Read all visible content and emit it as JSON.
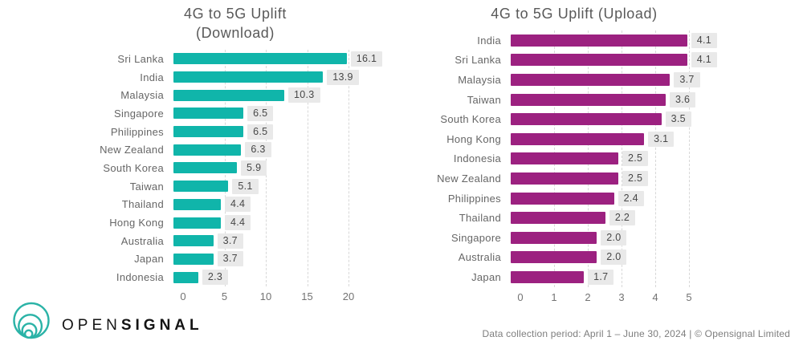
{
  "chart_data": [
    {
      "type": "bar",
      "orientation": "horizontal",
      "title": "4G to 5G Uplift (Download)",
      "title_lines": [
        "4G to 5G Uplift",
        "(Download)"
      ],
      "categories": [
        "Sri Lanka",
        "India",
        "Malaysia",
        "Singapore",
        "Philippines",
        "New Zealand",
        "South Korea",
        "Taiwan",
        "Thailand",
        "Hong Kong",
        "Australia",
        "Japan",
        "Indonesia"
      ],
      "values": [
        16.1,
        13.9,
        10.3,
        6.5,
        6.5,
        6.3,
        5.9,
        5.1,
        4.4,
        4.4,
        3.7,
        3.7,
        2.3
      ],
      "xlim": [
        0,
        20
      ],
      "xticks": [
        0,
        5,
        10,
        15,
        20
      ],
      "bar_color": "#10b5aa",
      "grid": "dashed-vertical",
      "value_labels": true,
      "legend": "none"
    },
    {
      "type": "bar",
      "orientation": "horizontal",
      "title": "4G to 5G Uplift (Upload)",
      "title_lines": [
        "4G to 5G Uplift (Upload)"
      ],
      "categories": [
        "India",
        "Sri Lanka",
        "Malaysia",
        "Taiwan",
        "South Korea",
        "Hong Kong",
        "Indonesia",
        "New Zealand",
        "Philippines",
        "Thailand",
        "Singapore",
        "Australia",
        "Japan"
      ],
      "values": [
        4.1,
        4.1,
        3.7,
        3.6,
        3.5,
        3.1,
        2.5,
        2.5,
        2.4,
        2.2,
        2.0,
        2.0,
        1.7
      ],
      "xlim": [
        0,
        5
      ],
      "xticks": [
        0,
        1,
        2,
        3,
        4,
        5
      ],
      "bar_color": "#9c2180",
      "grid": "dashed-vertical",
      "value_labels": true,
      "legend": "none"
    }
  ],
  "logo": {
    "brand_regular": "OPEN",
    "brand_bold": "SIGNAL",
    "icon_color": "#2bb3a7"
  },
  "footer": {
    "note": "Data collection period: April 1 – June 30, 2024 | © Opensignal Limited"
  }
}
